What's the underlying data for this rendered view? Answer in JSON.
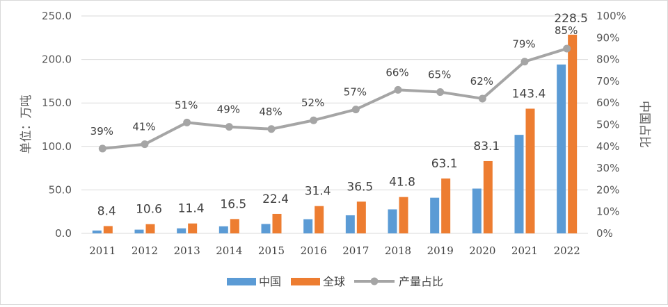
{
  "chart_data": {
    "type": "bar+line",
    "categories": [
      "2011",
      "2012",
      "2013",
      "2014",
      "2015",
      "2016",
      "2017",
      "2018",
      "2019",
      "2020",
      "2021",
      "2022"
    ],
    "series": [
      {
        "name": "中国",
        "axis": "left",
        "color": "#5B9BD5",
        "values": [
          3.3,
          4.3,
          5.8,
          8.1,
          10.8,
          16.3,
          20.8,
          27.6,
          41.0,
          51.5,
          113.3,
          194.2
        ]
      },
      {
        "name": "全球",
        "axis": "left",
        "color": "#ED7D31",
        "values": [
          8.4,
          10.6,
          11.4,
          16.5,
          22.4,
          31.4,
          36.5,
          41.8,
          63.1,
          83.1,
          143.4,
          228.5
        ],
        "labels": [
          "8.4",
          "10.6",
          "11.4",
          "16.5",
          "22.4",
          "31.4",
          "36.5",
          "41.8",
          "63.1",
          "83.1",
          "143.4",
          "228.5"
        ]
      },
      {
        "name": "产量占比",
        "axis": "right",
        "type": "line",
        "color": "#A5A5A5",
        "values": [
          39,
          41,
          51,
          49,
          48,
          52,
          57,
          66,
          65,
          62,
          79,
          85
        ],
        "labels": [
          "39%",
          "41%",
          "51%",
          "49%",
          "48%",
          "52%",
          "57%",
          "66%",
          "65%",
          "62%",
          "79%",
          "85%"
        ]
      }
    ],
    "y_left": {
      "label": "单位：万吨",
      "min": 0,
      "max": 250,
      "ticks": [
        "0.0",
        "50.0",
        "100.0",
        "150.0",
        "200.0",
        "250.0"
      ]
    },
    "y_right": {
      "label": "中国占比",
      "min": 0,
      "max": 100,
      "ticks": [
        "0%",
        "10%",
        "20%",
        "30%",
        "40%",
        "50%",
        "60%",
        "70%",
        "80%",
        "90%",
        "100%"
      ]
    },
    "legend": {
      "position": "bottom",
      "items": [
        "中国",
        "全球",
        "产量占比"
      ]
    }
  }
}
